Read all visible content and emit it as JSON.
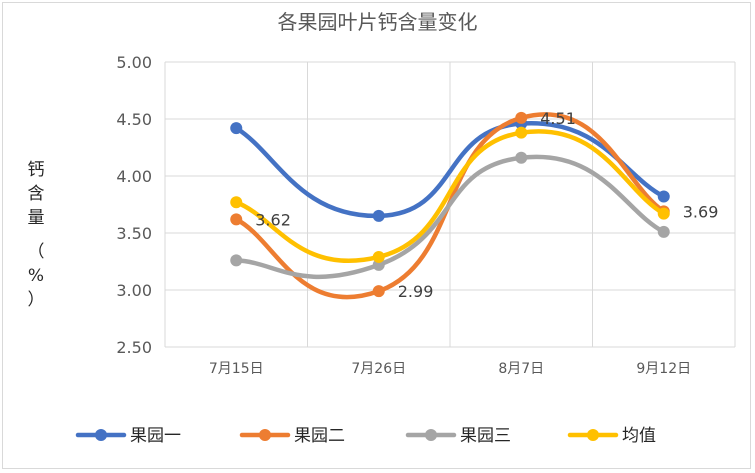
{
  "chart_data": {
    "type": "line",
    "title": "各果园叶片钙含量变化",
    "ylabel": "钙含量（%）",
    "ylabel_chars": [
      "钙",
      "含",
      "量",
      "（",
      "%",
      "）"
    ],
    "xlabel": "",
    "categories": [
      "7月15日",
      "7月26日",
      "8月7日",
      "9月12日"
    ],
    "ylim": [
      2.5,
      5.0
    ],
    "yticks": [
      "5.00",
      "4.50",
      "4.00",
      "3.50",
      "3.00",
      "2.50"
    ],
    "ytick_values": [
      5.0,
      4.5,
      4.0,
      3.5,
      3.0,
      2.5
    ],
    "grid": true,
    "smooth": true,
    "legend_position": "bottom",
    "series": [
      {
        "name": "果园一",
        "color": "#4472c4",
        "values": [
          4.42,
          3.65,
          4.46,
          3.82
        ],
        "labels": [
          "",
          "",
          "",
          ""
        ]
      },
      {
        "name": "果园二",
        "color": "#ed7d31",
        "values": [
          3.62,
          2.99,
          4.51,
          3.69
        ],
        "labels": [
          "3.62",
          "2.99",
          "4.51",
          "3.69"
        ]
      },
      {
        "name": "果园三",
        "color": "#a5a5a5",
        "values": [
          3.26,
          3.22,
          4.16,
          3.51
        ],
        "labels": [
          "",
          "",
          "",
          ""
        ]
      },
      {
        "name": "均值",
        "color": "#ffc000",
        "values": [
          3.77,
          3.29,
          4.38,
          3.67
        ],
        "labels": [
          "",
          "",
          "",
          ""
        ]
      }
    ]
  }
}
